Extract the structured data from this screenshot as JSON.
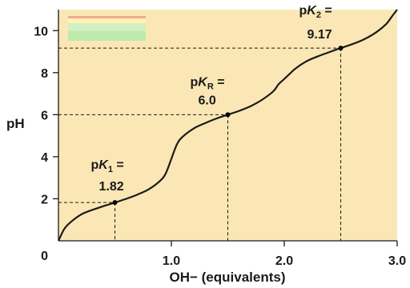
{
  "chart_data": {
    "type": "line",
    "xlabel": "OH− (equivalents)",
    "ylabel": "pH",
    "xlim": [
      0,
      3.0
    ],
    "ylim": [
      0,
      11
    ],
    "x_ticks": [
      "0",
      "1.0",
      "2.0",
      "3.0"
    ],
    "y_ticks": [
      "2",
      "4",
      "6",
      "8",
      "10"
    ],
    "grid": false,
    "colors": {
      "plot_background": "#fbe7b5",
      "curve": "#1a1a1a",
      "guides": "#1a1a1a"
    },
    "legend_swatch": {
      "stripes": [
        "#f2a98e",
        "#fff2b3",
        "#d2f0c4",
        "#bdeaac"
      ]
    },
    "series": [
      {
        "x": [
          0.0,
          0.05,
          0.1,
          0.2,
          0.3,
          0.4,
          0.5,
          0.6,
          0.7,
          0.8,
          0.9,
          0.95,
          1.0,
          1.05,
          1.1,
          1.2,
          1.3,
          1.4,
          1.5,
          1.6,
          1.7,
          1.8,
          1.9,
          1.95,
          2.0,
          2.05,
          2.1,
          2.2,
          2.3,
          2.4,
          2.5,
          2.6,
          2.7,
          2.8,
          2.9,
          2.95,
          3.0
        ],
        "y": [
          0.0,
          0.55,
          0.85,
          1.25,
          1.47,
          1.65,
          1.82,
          2.0,
          2.2,
          2.45,
          2.85,
          3.2,
          3.9,
          4.6,
          4.95,
          5.35,
          5.6,
          5.82,
          6.0,
          6.18,
          6.4,
          6.7,
          7.1,
          7.45,
          7.7,
          7.95,
          8.2,
          8.55,
          8.78,
          8.98,
          9.17,
          9.35,
          9.57,
          9.87,
          10.3,
          10.65,
          11.0
        ]
      }
    ],
    "annotations": [
      {
        "prefix": "p",
        "symbol": "K",
        "sub": "1",
        "value": "1.82",
        "x": 0.5,
        "y": 1.82
      },
      {
        "prefix": "p",
        "symbol": "K",
        "sub": "R",
        "value": "6.0",
        "x": 1.5,
        "y": 6.0
      },
      {
        "prefix": "p",
        "symbol": "K",
        "sub": "2",
        "value": "9.17",
        "x": 2.5,
        "y": 9.17
      }
    ]
  }
}
